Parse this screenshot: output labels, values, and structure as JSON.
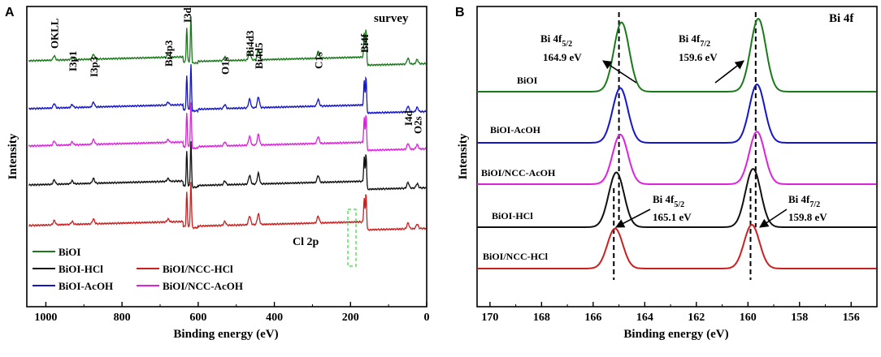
{
  "chart_data": [
    {
      "panel": "A",
      "type": "line",
      "title": "survey",
      "xlabel": "Binding energy (eV)",
      "ylabel": "Intensity",
      "xlim": [
        1050,
        0
      ],
      "x_reversed": true,
      "xticks": [
        1000,
        800,
        600,
        400,
        200,
        0
      ],
      "xtick_labels": [
        "1000",
        "800",
        "600",
        "400",
        "200",
        "0"
      ],
      "y_values_shown": false,
      "legend": {
        "placement": "bottom-left",
        "entries": [
          {
            "name": "BiOI",
            "color": "#1a7a1a"
          },
          {
            "name": "BiOI-HCl",
            "color": "#111111"
          },
          {
            "name": "BiOI/NCC-HCl",
            "color": "#cc1f1f"
          },
          {
            "name": "BiOI-AcOH",
            "color": "#1515cc"
          },
          {
            "name": "BiOI/NCC-AcOH",
            "color": "#dd22dd"
          }
        ]
      },
      "series": [
        {
          "name": "BiOI",
          "color": "#1a7a1a",
          "offset": 4
        },
        {
          "name": "BiOI-AcOH",
          "color": "#1515cc",
          "offset": 3
        },
        {
          "name": "BiOI/NCC-AcOH",
          "color": "#dd22dd",
          "offset": 2
        },
        {
          "name": "BiOI-HCl",
          "color": "#111111",
          "offset": 1
        },
        {
          "name": "BiOI/NCC-HCl",
          "color": "#cc1f1f",
          "offset": 0
        }
      ],
      "peaks": [
        {
          "label": "OKLL",
          "x": 978,
          "height": 0.9
        },
        {
          "label": "I3p1",
          "x": 931,
          "height": 0.6
        },
        {
          "label": "I3p3",
          "x": 875,
          "height": 1.0
        },
        {
          "label": "Bi4p3",
          "x": 679,
          "height": 0.6
        },
        {
          "label": "I3d",
          "x": 630,
          "height": 7.0
        },
        {
          "label": "",
          "x": 619,
          "height": 9.5
        },
        {
          "label": "O1s",
          "x": 530,
          "height": 0.8
        },
        {
          "label": "Bi4d3",
          "x": 465,
          "height": 1.8
        },
        {
          "label": "Bi4d5",
          "x": 442,
          "height": 2.2
        },
        {
          "label": "C1s",
          "x": 285,
          "height": 1.4
        },
        {
          "label": "Bi4f",
          "x": 164,
          "height": 5.0
        },
        {
          "label": "",
          "x": 159,
          "height": 7.0
        },
        {
          "label": "I4d",
          "x": 49,
          "height": 1.2
        },
        {
          "label": "O2s",
          "x": 25,
          "height": 0.9
        }
      ],
      "annotations": [
        {
          "text": "Cl 2p",
          "note": "dashed green box near 190 eV"
        }
      ]
    },
    {
      "panel": "B",
      "type": "line",
      "title": "Bi 4f",
      "xlabel": "Binding energy (eV)",
      "ylabel": "Intensity",
      "xlim": [
        170.5,
        155
      ],
      "x_reversed": true,
      "xticks": [
        170,
        168,
        166,
        164,
        162,
        160,
        158,
        156
      ],
      "xtick_labels": [
        "170",
        "168",
        "166",
        "164",
        "162",
        "160",
        "158",
        "156"
      ],
      "y_values_shown": false,
      "series": [
        {
          "name": "BiOI",
          "color": "#1a7a1a",
          "peaks": [
            164.9,
            159.6
          ],
          "amplitude": [
            0.95,
            1.0
          ]
        },
        {
          "name": "BiOI-AcOH",
          "color": "#1515cc",
          "peaks": [
            164.95,
            159.65
          ],
          "amplitude": [
            0.75,
            0.8
          ]
        },
        {
          "name": "BiOI/NCC-AcOH",
          "color": "#dd22dd",
          "peaks": [
            164.95,
            159.65
          ],
          "amplitude": [
            0.68,
            0.72
          ]
        },
        {
          "name": "BiOI-HCl",
          "color": "#111111",
          "peaks": [
            165.1,
            159.8
          ],
          "amplitude": [
            0.75,
            0.8
          ]
        },
        {
          "name": "BiOI/NCC-HCl",
          "color": "#cc1f1f",
          "peaks": [
            165.15,
            159.85
          ],
          "amplitude": [
            0.55,
            0.6
          ]
        }
      ],
      "reference_lines": [
        165.0,
        159.7,
        165.2,
        159.9
      ],
      "annotations": [
        {
          "id": "a1",
          "title": "Bi 4f",
          "sub": "5/2",
          "value": "164.9 eV"
        },
        {
          "id": "a2",
          "title": "Bi 4f",
          "sub": "7/2",
          "value": "159.6 eV"
        },
        {
          "id": "a3",
          "title": "Bi 4f",
          "sub": "5/2",
          "value": "165.1 eV"
        },
        {
          "id": "a4",
          "title": "Bi 4f",
          "sub": "7/2",
          "value": "159.8 eV"
        }
      ]
    }
  ]
}
